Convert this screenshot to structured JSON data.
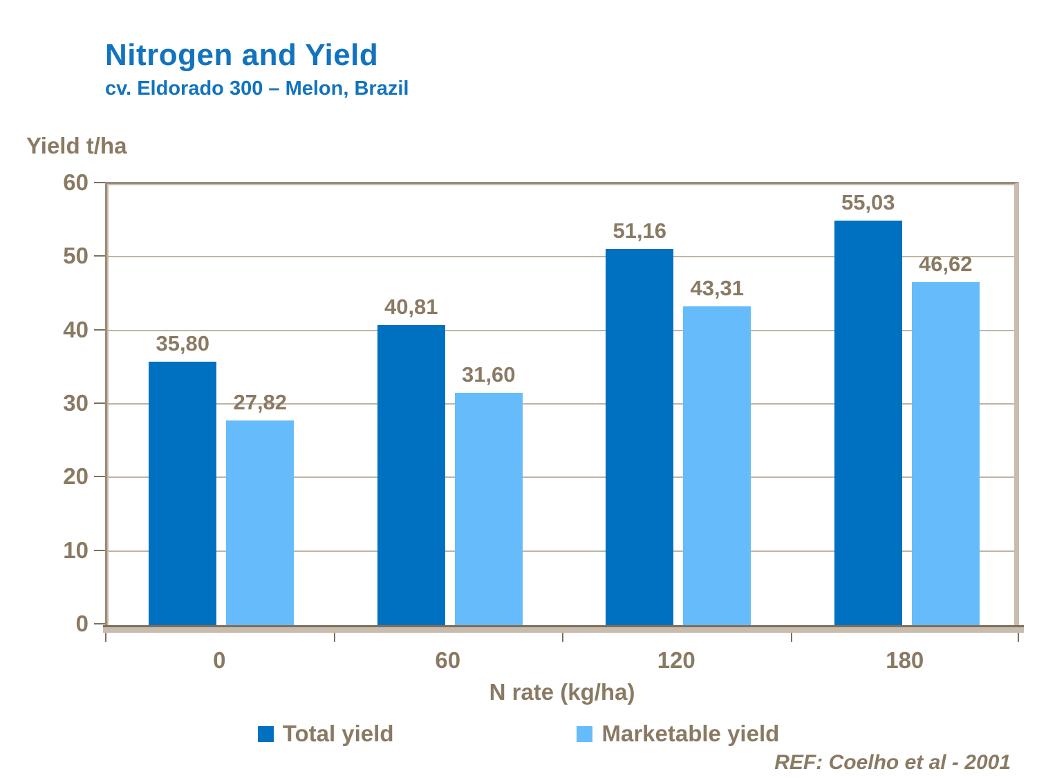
{
  "header": {
    "title": "Nitrogen and Yield",
    "subtitle": "cv. Eldorado 300 – Melon, Brazil"
  },
  "reference": "REF: Coelho et al - 2001",
  "colors": {
    "title_blue": "#1273BE",
    "label_brown": "#8A7A63",
    "total_yield": "#0070C0",
    "marketable_yield": "#66BBFA"
  },
  "chart_data": {
    "type": "bar",
    "title": "Nitrogen and Yield",
    "subtitle": "cv. Eldorado 300 – Melon, Brazil",
    "xlabel": "N rate (kg/ha)",
    "ylabel": "Yield t/ha",
    "categories": [
      "0",
      "60",
      "120",
      "180"
    ],
    "series": [
      {
        "name": "Total yield",
        "color": "#0070C0",
        "values": [
          35.8,
          40.81,
          51.16,
          55.03
        ],
        "labels": [
          "35,80",
          "40,81",
          "51,16",
          "55,03"
        ]
      },
      {
        "name": "Marketable yield",
        "color": "#66BBFA",
        "values": [
          27.82,
          31.6,
          43.31,
          46.62
        ],
        "labels": [
          "27,82",
          "31,60",
          "43,31",
          "46,62"
        ]
      }
    ],
    "ylim": [
      0,
      60
    ],
    "yticks": [
      0,
      10,
      20,
      30,
      40,
      50,
      60
    ],
    "grid": true,
    "legend_position": "bottom"
  }
}
